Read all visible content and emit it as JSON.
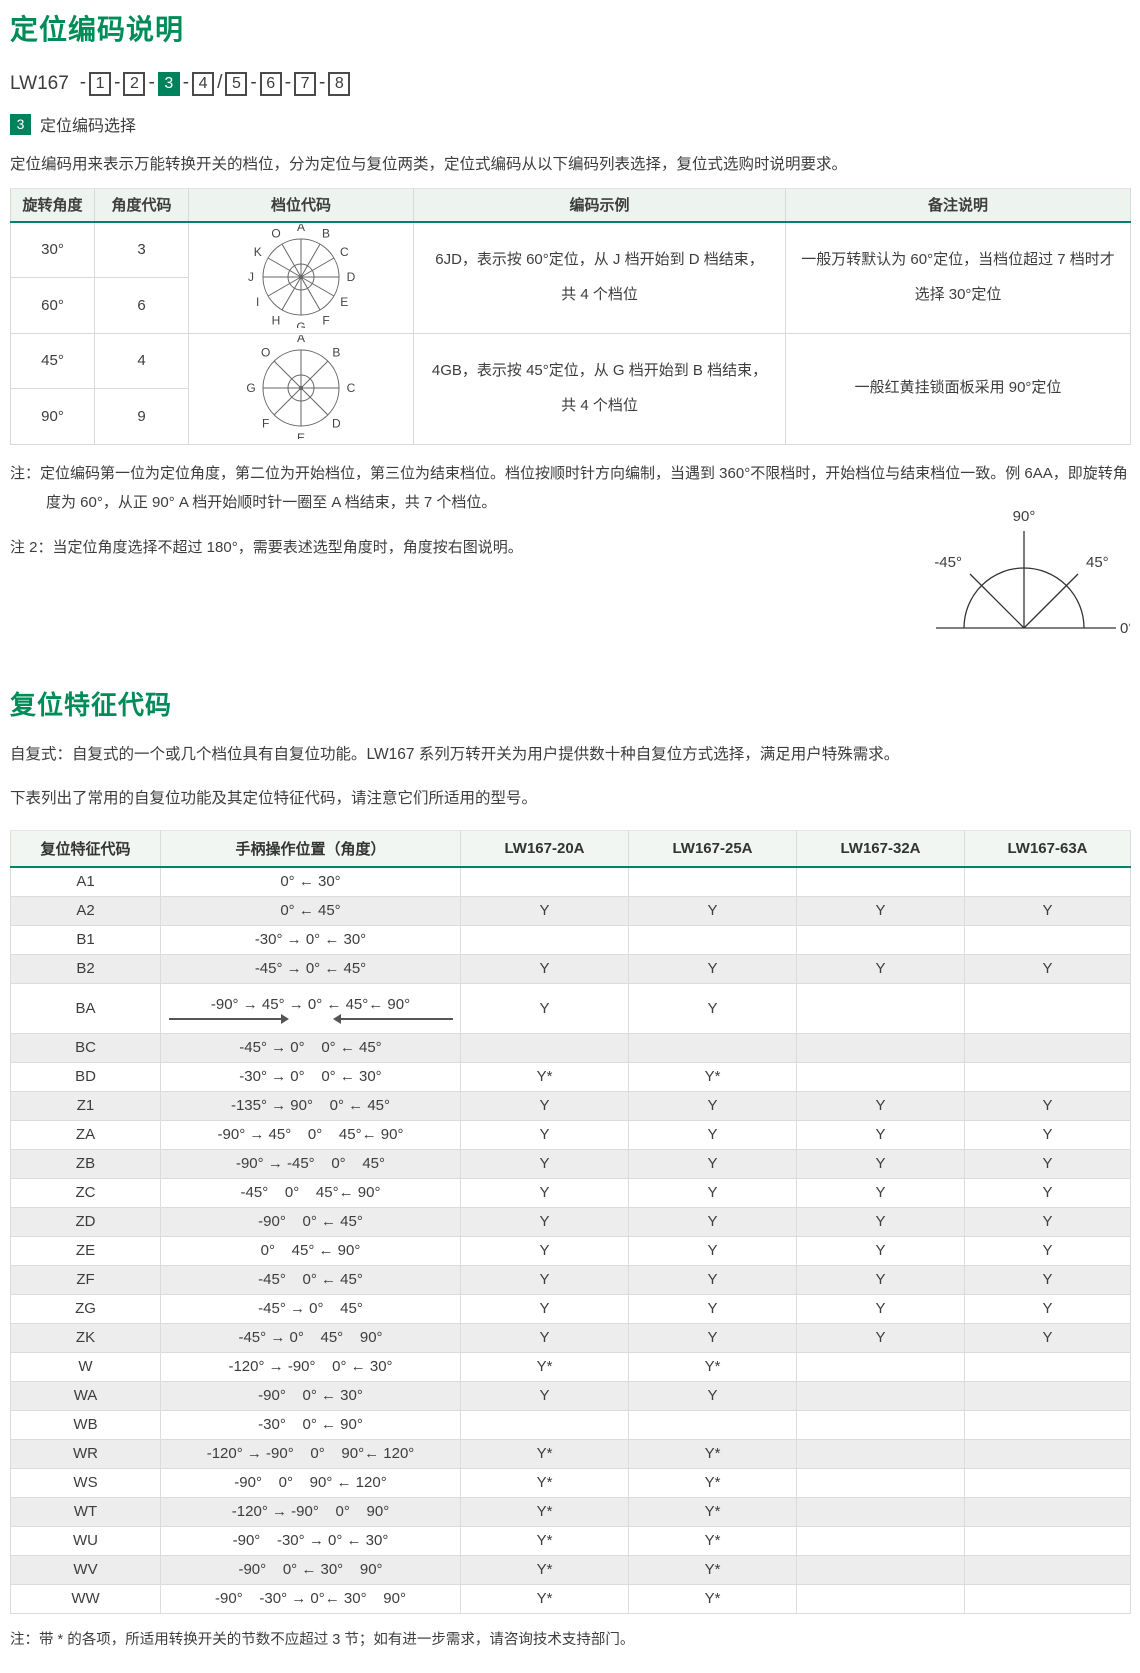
{
  "colors": {
    "accent_green": "#008C58",
    "box_green": "#00835C",
    "header_rule_green": "#00826D",
    "alt_row_gray": "#EDEDED"
  },
  "header": {
    "page_title": "定位编码说明",
    "model_code": {
      "prefix": "LW167",
      "boxes": [
        "1",
        "2",
        "3",
        "4",
        "5",
        "6",
        "7",
        "8"
      ],
      "separators": [
        "-",
        "-",
        "-",
        "-",
        "/",
        "-",
        "-",
        "-"
      ],
      "highlighted_index": 2
    },
    "section_badge": "3",
    "section_badge_label": "定位编码选择",
    "intro": "定位编码用来表示万能转换开关的档位，分为定位与复位两类，定位式编码从以下编码列表选择，复位式选购时说明要求。"
  },
  "positioning_table": {
    "headers": [
      "旋转角度",
      "角度代码",
      "档位代码",
      "编码示例",
      "备注说明"
    ],
    "groups": [
      {
        "rows": [
          {
            "angle": "30°",
            "code": "3"
          },
          {
            "angle": "60°",
            "code": "6"
          }
        ],
        "dial_letters": [
          "A",
          "B",
          "C",
          "D",
          "E",
          "F",
          "G",
          "H",
          "I",
          "J",
          "K",
          "O"
        ],
        "example_lines": [
          "6JD，表示按 60°定位，从 J 档开始到 D 档结束，",
          "共 4 个档位"
        ],
        "remark_lines": [
          "一般万转默认为 60°定位，当档位超过 7 档时才",
          "选择 30°定位"
        ]
      },
      {
        "rows": [
          {
            "angle": "45°",
            "code": "4"
          },
          {
            "angle": "90°",
            "code": "9"
          }
        ],
        "dial_letters": [
          "A",
          "B",
          "C",
          "D",
          "E",
          "F",
          "G",
          "O"
        ],
        "example_lines": [
          "4GB，表示按 45°定位，从 G 档开始到 B 档结束，",
          "共 4 个档位"
        ],
        "remark_lines": [
          "一般红黄挂锁面板采用 90°定位"
        ]
      }
    ]
  },
  "notes": {
    "note1": "注：定位编码第一位为定位角度，第二位为开始档位，第三位为结束档位。档位按顺时针方向编制，当遇到 360°不限档时，开始档位与结束档位一致。例 6AA，即旋转角度为 60°，从正 90° A 档开始顺时针一圈至 A 档结束，共 7 个档位。",
    "note2": "注 2：当定位角度选择不超过 180°，需要表述选型角度时，角度按右图说明。"
  },
  "angle_diagram": {
    "top": "90°",
    "upper_left": "-45°",
    "upper_right": "45°",
    "zero": "0°"
  },
  "reset_section": {
    "title": "复位特征代码",
    "para1": "自复式：自复式的一个或几个档位具有自复位功能。LW167 系列万转开关为用户提供数十种自复位方式选择，满足用户特殊需求。",
    "para2": "下表列出了常用的自复位功能及其定位特征代码，请注意它们所适用的型号。"
  },
  "reset_table": {
    "headers": [
      "复位特征代码",
      "手柄操作位置（角度）",
      "LW167-20A",
      "LW167-25A",
      "LW167-32A",
      "LW167-63A"
    ],
    "rows": [
      {
        "code": "A1",
        "position": "0° ← 30°",
        "models": [
          "",
          "",
          "",
          ""
        ]
      },
      {
        "code": "A2",
        "position": "0° ← 45°",
        "models": [
          "Y",
          "Y",
          "Y",
          "Y"
        ]
      },
      {
        "code": "B1",
        "position": "-30° → 0° ← 30°",
        "models": [
          "",
          "",
          "",
          ""
        ]
      },
      {
        "code": "B2",
        "position": "-45° → 0° ← 45°",
        "models": [
          "Y",
          "Y",
          "Y",
          "Y"
        ]
      },
      {
        "code": "BA",
        "position": "-90° → 45° → 0° ← 45°← 90°",
        "models": [
          "Y",
          "Y",
          "",
          ""
        ],
        "arrows": true
      },
      {
        "code": "BC",
        "position": "-45° → 0°    0° ← 45°",
        "models": [
          "",
          "",
          "",
          ""
        ]
      },
      {
        "code": "BD",
        "position": "-30° → 0°    0° ← 30°",
        "models": [
          "Y*",
          "Y*",
          "",
          ""
        ]
      },
      {
        "code": "Z1",
        "position": "-135° → 90°    0° ← 45°",
        "models": [
          "Y",
          "Y",
          "Y",
          "Y"
        ]
      },
      {
        "code": "ZA",
        "position": "-90° → 45°    0°    45°← 90°",
        "models": [
          "Y",
          "Y",
          "Y",
          "Y"
        ]
      },
      {
        "code": "ZB",
        "position": "-90° → -45°    0°    45°",
        "models": [
          "Y",
          "Y",
          "Y",
          "Y"
        ]
      },
      {
        "code": "ZC",
        "position": "-45°    0°    45°← 90°",
        "models": [
          "Y",
          "Y",
          "Y",
          "Y"
        ]
      },
      {
        "code": "ZD",
        "position": "-90°    0° ← 45°",
        "models": [
          "Y",
          "Y",
          "Y",
          "Y"
        ]
      },
      {
        "code": "ZE",
        "position": "0°    45° ← 90°",
        "models": [
          "Y",
          "Y",
          "Y",
          "Y"
        ]
      },
      {
        "code": "ZF",
        "position": "-45°    0° ← 45°",
        "models": [
          "Y",
          "Y",
          "Y",
          "Y"
        ]
      },
      {
        "code": "ZG",
        "position": "-45° → 0°    45°",
        "models": [
          "Y",
          "Y",
          "Y",
          "Y"
        ]
      },
      {
        "code": "ZK",
        "position": "-45° → 0°    45°    90°",
        "models": [
          "Y",
          "Y",
          "Y",
          "Y"
        ]
      },
      {
        "code": "W",
        "position": "-120° → -90°    0° ← 30°",
        "models": [
          "Y*",
          "Y*",
          "",
          ""
        ]
      },
      {
        "code": "WA",
        "position": "-90°    0° ← 30°",
        "models": [
          "Y",
          "Y",
          "",
          ""
        ]
      },
      {
        "code": "WB",
        "position": "-30°    0° ← 90°",
        "models": [
          "",
          "",
          "",
          ""
        ]
      },
      {
        "code": "WR",
        "position": "-120° → -90°    0°    90°← 120°",
        "models": [
          "Y*",
          "Y*",
          "",
          ""
        ]
      },
      {
        "code": "WS",
        "position": "-90°    0°    90° ← 120°",
        "models": [
          "Y*",
          "Y*",
          "",
          ""
        ]
      },
      {
        "code": "WT",
        "position": "-120° → -90°    0°    90°",
        "models": [
          "Y*",
          "Y*",
          "",
          ""
        ]
      },
      {
        "code": "WU",
        "position": "-90°    -30° → 0° ← 30°",
        "models": [
          "Y*",
          "Y*",
          "",
          ""
        ]
      },
      {
        "code": "WV",
        "position": "-90°    0° ← 30°    90°",
        "models": [
          "Y*",
          "Y*",
          "",
          ""
        ]
      },
      {
        "code": "WW",
        "position": "-90°    -30° → 0°← 30°    90°",
        "models": [
          "Y*",
          "Y*",
          "",
          ""
        ]
      }
    ]
  },
  "footer_note": "注：带 * 的各项，所适用转换开关的节数不应超过 3 节；如有进一步需求，请咨询技术支持部门。"
}
